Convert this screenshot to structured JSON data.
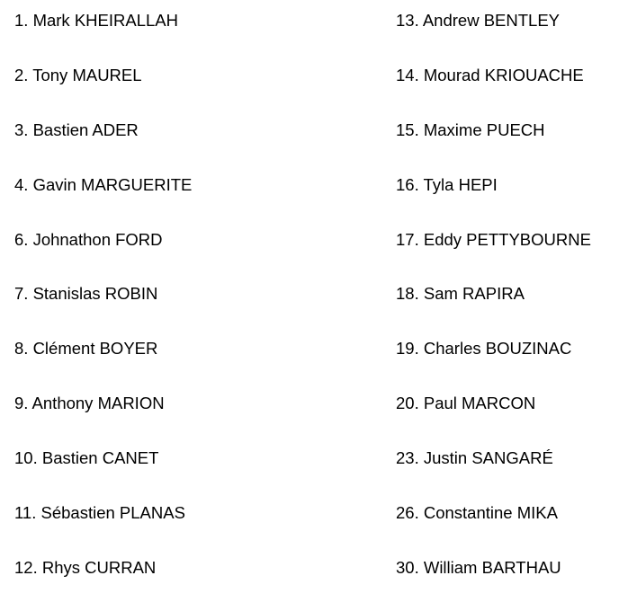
{
  "left_column": [
    "1. Mark KHEIRALLAH",
    "2. Tony MAUREL",
    "3. Bastien ADER",
    "4. Gavin MARGUERITE",
    "6. Johnathon FORD",
    "7. Stanislas ROBIN",
    "8. Clément BOYER",
    "9. Anthony MARION",
    "10. Bastien CANET",
    "11. Sébastien PLANAS",
    "12. Rhys CURRAN"
  ],
  "right_column": [
    "13. Andrew BENTLEY",
    "14. Mourad KRIOUACHE",
    "15. Maxime PUECH",
    "16. Tyla HEPI",
    "17. Eddy PETTYBOURNE",
    "18. Sam RAPIRA",
    "19. Charles BOUZINAC",
    "20. Paul MARCON",
    "23. Justin SANGARÉ",
    "26. Constantine MIKA",
    "30. William BARTHAU"
  ]
}
